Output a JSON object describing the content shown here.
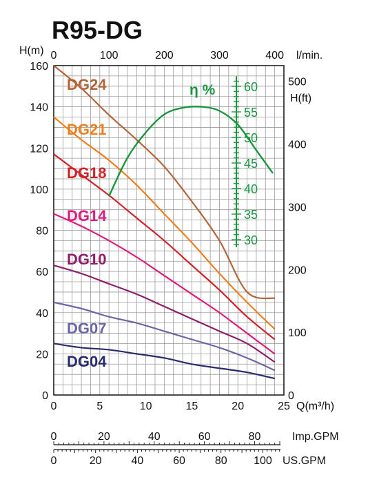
{
  "chart_data": {
    "type": "line",
    "title": "R95-DG",
    "x_axis": {
      "label": "Q(m³/h)",
      "range": [
        0,
        25
      ],
      "ticks": [
        0,
        5,
        10,
        15,
        20,
        25
      ]
    },
    "x_axis_top": {
      "label": "l/min.",
      "ticks": [
        0,
        100,
        200,
        300,
        400
      ]
    },
    "y_axis_left": {
      "label": "H(m)",
      "range": [
        0,
        160
      ],
      "ticks": [
        0,
        20,
        40,
        60,
        80,
        100,
        120,
        140,
        160
      ]
    },
    "y_axis_right": {
      "label": "H(ft)",
      "ticks": [
        0,
        100,
        200,
        300,
        400,
        500
      ]
    },
    "efficiency_axis": {
      "label": "η %",
      "ticks": [
        30,
        35,
        40,
        45,
        50,
        55,
        60
      ]
    },
    "imp_gpm_axis": {
      "label": "Imp.GPM",
      "ticks": [
        0,
        20,
        40,
        60,
        80
      ]
    },
    "us_gpm_axis": {
      "label": "US.GPM",
      "ticks": [
        0,
        20,
        40,
        60,
        80,
        100
      ]
    },
    "series": [
      {
        "name": "DG24",
        "color": "#b5653a",
        "x": [
          0,
          3,
          6,
          9,
          12,
          15,
          18,
          21,
          24
        ],
        "y": [
          160,
          149,
          136,
          124,
          111,
          94,
          75,
          50,
          47
        ]
      },
      {
        "name": "DG21",
        "color": "#ef7f1a",
        "x": [
          0,
          3,
          6,
          9,
          12,
          15,
          18,
          21,
          24
        ],
        "y": [
          135,
          124,
          114,
          102,
          88,
          74,
          59,
          45,
          32
        ]
      },
      {
        "name": "DG18",
        "color": "#d42027",
        "x": [
          0,
          3,
          6,
          9,
          12,
          15,
          18,
          21,
          24
        ],
        "y": [
          117,
          107,
          97,
          86,
          75,
          63,
          51,
          38,
          27
        ]
      },
      {
        "name": "DG14",
        "color": "#e3197b",
        "x": [
          0,
          3,
          6,
          9,
          12,
          15,
          18,
          21,
          24
        ],
        "y": [
          88,
          82,
          75,
          67,
          58,
          49,
          40,
          30,
          20
        ]
      },
      {
        "name": "DG10",
        "color": "#8e1e6b",
        "x": [
          0,
          3,
          6,
          9,
          12,
          15,
          18,
          21,
          24
        ],
        "y": [
          63,
          59,
          54,
          49,
          43,
          37,
          31,
          25,
          16
        ]
      },
      {
        "name": "DG07",
        "color": "#6b65a8",
        "x": [
          0,
          3,
          6,
          9,
          12,
          15,
          18,
          21,
          24
        ],
        "y": [
          45,
          42,
          38,
          35,
          31,
          27,
          23,
          18,
          12
        ]
      },
      {
        "name": "DG04",
        "color": "#2a2a6e",
        "x": [
          0,
          3,
          6,
          9,
          12,
          15,
          18,
          21,
          24
        ],
        "y": [
          25,
          23,
          22,
          20,
          18,
          15,
          13,
          11,
          8
        ]
      }
    ],
    "efficiency": {
      "color": "#1a9640",
      "x": [
        6,
        8,
        10,
        12,
        14,
        16,
        18,
        20,
        22,
        23.8
      ],
      "eta": [
        38.5,
        46,
        51,
        54.5,
        55.8,
        56,
        55.2,
        52.5,
        47.5,
        43
      ]
    },
    "grid": true
  }
}
